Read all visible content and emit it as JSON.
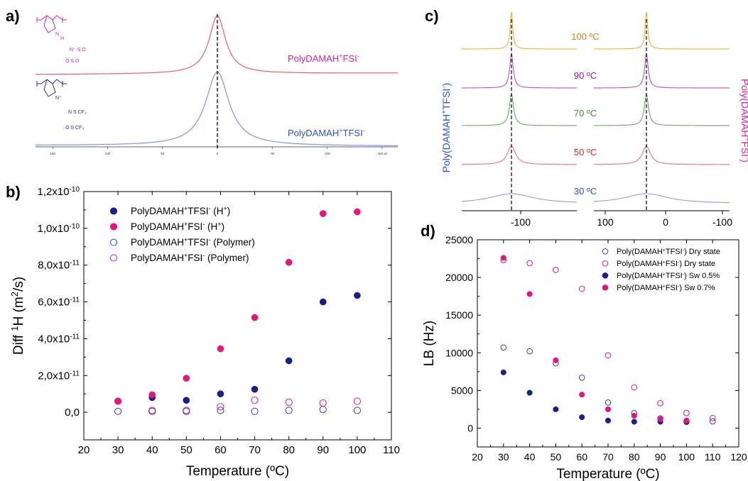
{
  "panel_labels": {
    "a": "a)",
    "b": "b)",
    "c": "c)",
    "d": "d)"
  },
  "chart_data": [
    {
      "id": "a",
      "type": "line",
      "series": [
        {
          "name": "PolyDAMAH⁺FSI⁻",
          "color": "#f06060",
          "label_color": "#e0209a"
        },
        {
          "name": "PolyDAMAH⁺TFSI⁻",
          "color": "#8090f0",
          "label_color": "#2a52d8"
        }
      ],
      "x_ticks": [
        "150",
        "100",
        "50",
        "0",
        "-50",
        "-100",
        "-150 ps"
      ],
      "dashed_line_x": 0
    },
    {
      "id": "b",
      "type": "scatter",
      "xlabel": "Temperature (ºC)",
      "ylabel": "Diff ¹H (m²/s)",
      "xlim": [
        20,
        110
      ],
      "ylim": [
        -1.5e-11,
        1.2e-10
      ],
      "x_ticks": [
        20,
        30,
        40,
        50,
        60,
        70,
        80,
        90,
        100,
        110
      ],
      "y_ticks": [
        0,
        2e-11,
        4e-11,
        6e-11,
        8e-11,
        1e-10,
        1.2e-10
      ],
      "y_tick_labels": [
        "0,0",
        "2,0x10⁻¹¹",
        "4,0x10⁻¹¹",
        "6,0x10⁻¹¹",
        "8,0x10⁻¹¹",
        "1,0x10⁻¹⁰",
        "1,2x10⁻¹⁰"
      ],
      "legend_position": "top-left",
      "series": [
        {
          "name": "PolyDAMAH⁺TFSI⁻ (H⁺)",
          "color": "#1a1f8a",
          "filled": true,
          "x": [
            30,
            40,
            50,
            60,
            70,
            80,
            90,
            100
          ],
          "y": [
            6e-12,
            8e-12,
            6.5e-12,
            1e-11,
            1.25e-11,
            2.8e-11,
            6e-11,
            6.35e-11
          ]
        },
        {
          "name": "PolyDAMAH⁺FSI⁻ (H⁺)",
          "color": "#e8157a",
          "filled": true,
          "x": [
            30,
            40,
            50,
            60,
            70,
            80,
            90,
            100
          ],
          "y": [
            6e-12,
            9.5e-12,
            1.85e-11,
            3.45e-11,
            5.15e-11,
            8.15e-11,
            1.08e-10,
            1.09e-10
          ]
        },
        {
          "name": "PolyDAMAH⁺TFSI⁻ (Polymer)",
          "color": "#2a3fc8",
          "filled": false,
          "x": [
            30,
            40,
            50,
            60,
            70,
            80,
            90,
            100
          ],
          "y": [
            5e-13,
            5e-13,
            5e-13,
            1e-12,
            5e-13,
            1e-12,
            1.5e-12,
            1e-12
          ]
        },
        {
          "name": "PolyDAMAH⁺FSI⁻ (Polymer)",
          "color": "#e8157a",
          "filled": false,
          "x": [
            30,
            40,
            50,
            60,
            70,
            80,
            90,
            100
          ],
          "y": [
            6e-12,
            1e-12,
            1e-12,
            3e-12,
            6.5e-12,
            5.5e-12,
            5e-12,
            6e-12
          ]
        }
      ]
    },
    {
      "id": "c",
      "type": "line",
      "left_axis_label": "Poly(DAMAH⁺TFSI⁻)",
      "right_axis_label": "Poly(DAMAH⁺FSI⁻)",
      "left_x_ticks": [
        "-100"
      ],
      "right_x_ticks": [
        "100",
        "0",
        "-100"
      ],
      "temperatures": [
        {
          "label": "100 ºC",
          "color": "#f0b030",
          "text_color": "#e07a1a"
        },
        {
          "label": "90 ºC",
          "color": "#c050c0",
          "text_color": "#9020a0"
        },
        {
          "label": "70 ºC",
          "color": "#70a070",
          "text_color": "#4a8a3a"
        },
        {
          "label": "50 ºC",
          "color": "#f07070",
          "text_color": "#e02a2a"
        },
        {
          "label": "30 ºC",
          "color": "#9898f0",
          "text_color": "#2a52d8"
        }
      ]
    },
    {
      "id": "d",
      "type": "scatter",
      "xlabel": "Temperature (ºC)",
      "ylabel": "LB (Hz)",
      "xlim": [
        20,
        120
      ],
      "ylim": [
        -2500,
        25000
      ],
      "x_ticks": [
        20,
        30,
        40,
        50,
        60,
        70,
        80,
        90,
        100,
        110,
        120
      ],
      "y_ticks": [
        0,
        5000,
        10000,
        15000,
        20000,
        25000
      ],
      "legend_position": "top-right",
      "series": [
        {
          "name": "Poly(DAMAH⁺TFSI⁻) Dry state",
          "color": "#2a3fc8",
          "filled": false,
          "x": [
            30,
            40,
            50,
            60,
            70,
            80,
            90,
            100,
            110
          ],
          "y": [
            10700,
            10200,
            8600,
            6700,
            3400,
            2000,
            1300,
            900,
            900
          ]
        },
        {
          "name": "Poly(DAMAH⁺FSI⁻) Dry state",
          "color": "#e8157a",
          "filled": false,
          "x": [
            30,
            40,
            50,
            60,
            70,
            80,
            90,
            100,
            110
          ],
          "y": [
            22300,
            21900,
            21000,
            18500,
            9650,
            5400,
            3300,
            2000,
            1350
          ]
        },
        {
          "name": "Poly(DAMAH⁺TFSI⁻) Sw 0.5%",
          "color": "#1a1f8a",
          "filled": true,
          "x": [
            30,
            40,
            50,
            60,
            70,
            80,
            90,
            100
          ],
          "y": [
            7400,
            4700,
            2500,
            1450,
            1000,
            850,
            850,
            800
          ]
        },
        {
          "name": "Poly(DAMAH⁺FSI⁻) Sw 0.7%",
          "color": "#e8157a",
          "filled": true,
          "x": [
            30,
            40,
            50,
            60,
            70,
            80,
            90,
            100
          ],
          "y": [
            22600,
            17800,
            9000,
            4450,
            2500,
            1650,
            1200,
            1000
          ]
        }
      ]
    }
  ]
}
